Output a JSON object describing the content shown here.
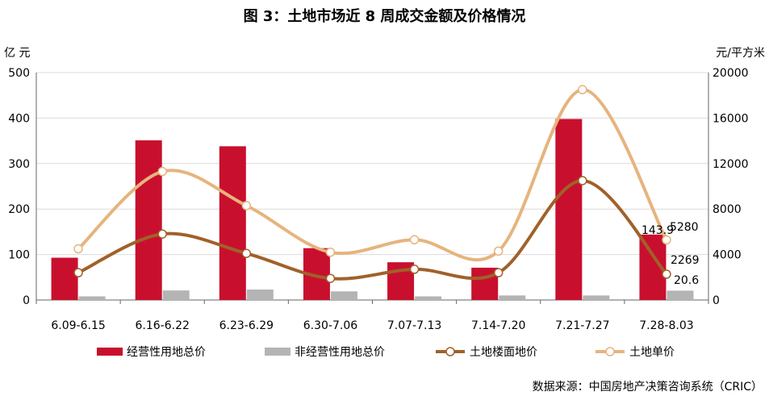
{
  "title": "图 3：土地市场近 8 周成交金额及价格情况",
  "source": "数据来源：中国房地产决策咨询系统（CRIC）",
  "chart_data": {
    "type": "bar",
    "categories": [
      "6.09-6.15",
      "6.16-6.22",
      "6.23-6.29",
      "6.30-7.06",
      "7.07-7.13",
      "7.14-7.20",
      "7.21-7.27",
      "7.28-8.03"
    ],
    "left_axis": {
      "unit": "亿  元",
      "ylim": [
        0,
        500
      ],
      "ticks": [
        0,
        100,
        200,
        300,
        400,
        500
      ]
    },
    "right_axis": {
      "unit": "元/平方米",
      "ylim": [
        0,
        20000
      ],
      "ticks": [
        0,
        4000,
        8000,
        12000,
        16000,
        20000
      ]
    },
    "series": [
      {
        "name": "经营性用地总价",
        "type": "bar",
        "axis": "left",
        "color": "#c8102e",
        "values": [
          93,
          351,
          338,
          114,
          83,
          71,
          398,
          143.9
        ]
      },
      {
        "name": "非经营性用地总价",
        "type": "bar",
        "axis": "left",
        "color": "#b4b4b4",
        "values": [
          8,
          21,
          23,
          19,
          8,
          10,
          10,
          20.6
        ]
      },
      {
        "name": "土地楼面地价",
        "type": "line",
        "axis": "right",
        "color": "#a0612a",
        "values": [
          2400,
          5800,
          4100,
          1900,
          2700,
          2400,
          10500,
          2269
        ]
      },
      {
        "name": "土地单价",
        "type": "line",
        "axis": "right",
        "color": "#e6b47e",
        "values": [
          4500,
          11300,
          8300,
          4200,
          5300,
          4300,
          18500,
          5280
        ]
      }
    ],
    "data_labels": [
      "143.9",
      "5280",
      "2269",
      "20.6"
    ],
    "grid": true,
    "legend_position": "bottom"
  }
}
